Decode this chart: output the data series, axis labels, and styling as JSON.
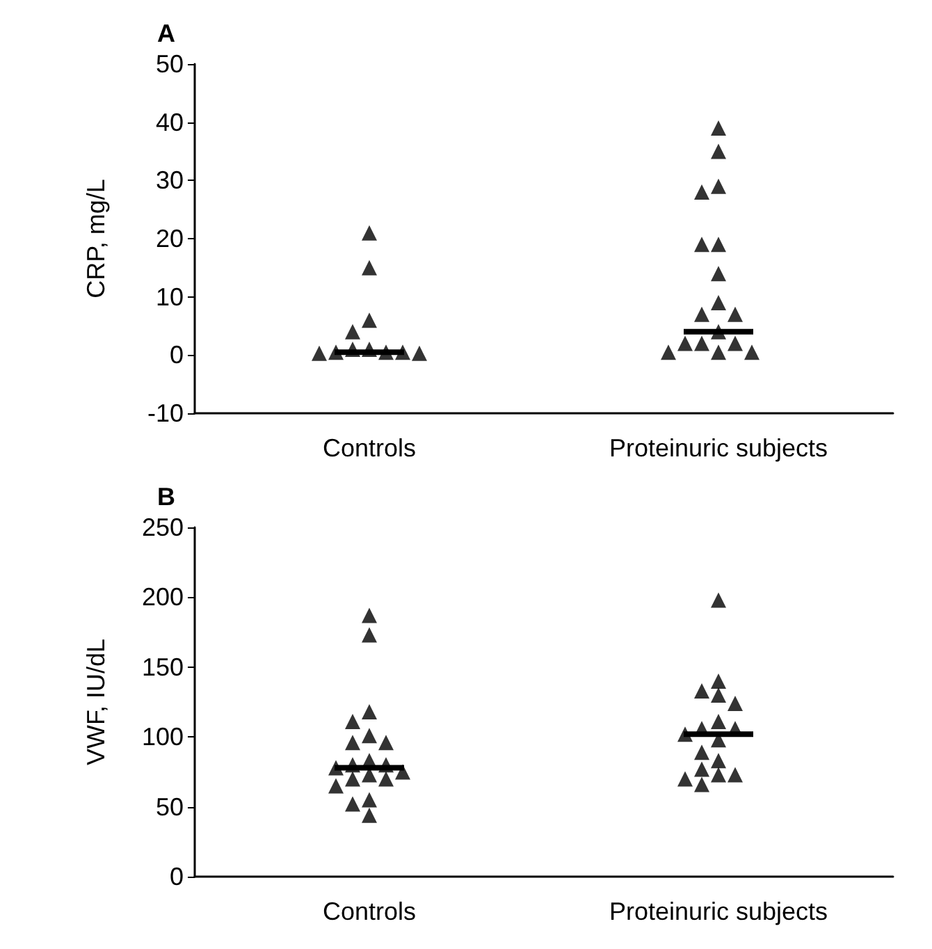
{
  "chart_data": [
    {
      "type": "scatter",
      "title": "A",
      "ylabel": "CRP, mg/L",
      "categories": [
        "Controls",
        "Proteinuric subjects"
      ],
      "ylim": [
        -10,
        50
      ],
      "yticks": [
        -10,
        0,
        10,
        20,
        30,
        40,
        50
      ],
      "grid": false,
      "series": [
        {
          "color": "#000000",
          "marker": "triangle",
          "x": [
            "Controls",
            "Controls",
            "Controls",
            "Controls",
            "Controls",
            "Controls",
            "Controls",
            "Controls",
            "Controls",
            "Controls",
            "Controls",
            "Proteinuric subjects",
            "Proteinuric subjects",
            "Proteinuric subjects",
            "Proteinuric subjects",
            "Proteinuric subjects",
            "Proteinuric subjects",
            "Proteinuric subjects",
            "Proteinuric subjects",
            "Proteinuric subjects",
            "Proteinuric subjects",
            "Proteinuric subjects",
            "Proteinuric subjects",
            "Proteinuric subjects",
            "Proteinuric subjects",
            "Proteinuric subjects",
            "Proteinuric subjects",
            "Proteinuric subjects"
          ],
          "values": [
            21,
            15,
            6,
            4,
            1,
            1,
            0.5,
            0.5,
            0.5,
            0.3,
            0.3,
            39,
            35,
            29,
            28,
            19,
            19,
            14,
            9,
            7,
            7,
            4,
            2,
            2,
            2,
            0.5,
            0.5,
            0.5
          ]
        },
        {
          "type": "box",
          "color": "#000000",
          "boxes": [
            {
              "low": 0.5,
              "q1": 0.5,
              "median": 0.5,
              "q3": 0.5,
              "high": 0.5
            },
            {
              "low": 4,
              "q1": 4,
              "median": 4,
              "q3": 4,
              "high": 4
            }
          ]
        }
      ]
    },
    {
      "type": "scatter",
      "title": "B",
      "ylabel": "VWF, IU/dL",
      "categories": [
        "Controls",
        "Proteinuric subjects"
      ],
      "ylim": [
        0,
        250
      ],
      "yticks": [
        0,
        50,
        100,
        150,
        200,
        250
      ],
      "grid": false,
      "series": [
        {
          "color": "#000000",
          "marker": "triangle",
          "x": [
            "Controls",
            "Controls",
            "Controls",
            "Controls",
            "Controls",
            "Controls",
            "Controls",
            "Controls",
            "Controls",
            "Controls",
            "Controls",
            "Controls",
            "Controls",
            "Controls",
            "Controls",
            "Controls",
            "Controls",
            "Controls",
            "Controls",
            "Proteinuric subjects",
            "Proteinuric subjects",
            "Proteinuric subjects",
            "Proteinuric subjects",
            "Proteinuric subjects",
            "Proteinuric subjects",
            "Proteinuric subjects",
            "Proteinuric subjects",
            "Proteinuric subjects",
            "Proteinuric subjects",
            "Proteinuric subjects",
            "Proteinuric subjects",
            "Proteinuric subjects",
            "Proteinuric subjects",
            "Proteinuric subjects",
            "Proteinuric subjects",
            "Proteinuric subjects"
          ],
          "values": [
            187,
            173,
            118,
            111,
            101,
            96,
            96,
            83,
            80,
            80,
            78,
            75,
            73,
            70,
            70,
            65,
            55,
            52,
            44,
            198,
            140,
            133,
            130,
            124,
            111,
            106,
            106,
            102,
            98,
            89,
            83,
            77,
            73,
            73,
            70,
            66
          ]
        },
        {
          "type": "box",
          "color": "#000000",
          "boxes": [
            {
              "low": 78,
              "q1": 78,
              "median": 78,
              "q3": 78,
              "high": 78
            },
            {
              "low": 102,
              "q1": 102,
              "median": 102,
              "q3": 102,
              "high": 102
            }
          ]
        }
      ]
    }
  ]
}
